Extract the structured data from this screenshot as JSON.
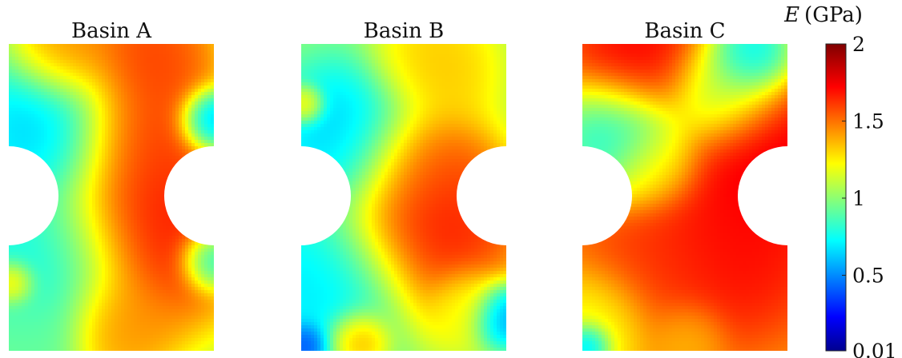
{
  "chart_data": {
    "type": "heatmap",
    "colormap": "jet",
    "colorbar": {
      "label_symbol": "E",
      "label_unit": "(GPa)",
      "min": 0.01,
      "max": 2,
      "ticks": [
        {
          "value": 2,
          "label": "2"
        },
        {
          "value": 1.5,
          "label": "1.5"
        },
        {
          "value": 1,
          "label": "1"
        },
        {
          "value": 0.5,
          "label": "0.5"
        },
        {
          "value": 0.01,
          "label": "0.01"
        }
      ]
    },
    "panels": [
      {
        "title": "Basin A",
        "background": 1.05,
        "blobs": [
          {
            "u": 0.22,
            "v": 0.28,
            "val": 0.6,
            "r": 0.2
          },
          {
            "u": 0.2,
            "v": 0.7,
            "val": 0.72,
            "r": 0.22
          },
          {
            "u": 0.7,
            "v": 0.6,
            "val": 1.8,
            "r": 0.26
          },
          {
            "u": 0.62,
            "v": 0.3,
            "val": 1.7,
            "r": 0.18
          },
          {
            "u": 0.68,
            "v": 0.05,
            "val": 1.7,
            "r": 0.18
          },
          {
            "u": 0.3,
            "v": 0.03,
            "val": 1.55,
            "r": 0.14
          },
          {
            "u": 0.98,
            "v": 0.25,
            "val": 0.45,
            "r": 0.08
          },
          {
            "u": 0.99,
            "v": 0.7,
            "val": 0.55,
            "r": 0.08
          },
          {
            "u": 0.02,
            "v": 0.78,
            "val": 1.55,
            "r": 0.06
          },
          {
            "u": 0.55,
            "v": 0.92,
            "val": 1.5,
            "r": 0.14
          },
          {
            "u": 0.1,
            "v": 0.95,
            "val": 0.95,
            "r": 0.14
          }
        ]
      },
      {
        "title": "Basin B",
        "background": 1.05,
        "blobs": [
          {
            "u": 0.25,
            "v": 0.32,
            "val": 0.6,
            "r": 0.2
          },
          {
            "u": 0.15,
            "v": 0.78,
            "val": 0.65,
            "r": 0.22
          },
          {
            "u": 0.62,
            "v": 0.6,
            "val": 1.8,
            "r": 0.24
          },
          {
            "u": 0.58,
            "v": 0.4,
            "val": 1.65,
            "r": 0.16
          },
          {
            "u": 0.65,
            "v": 0.08,
            "val": 1.4,
            "r": 0.16
          },
          {
            "u": 0.02,
            "v": 0.2,
            "val": 1.4,
            "r": 0.05
          },
          {
            "u": 0.98,
            "v": 0.88,
            "val": 0.45,
            "r": 0.08
          },
          {
            "u": 0.28,
            "v": 0.96,
            "val": 1.6,
            "r": 0.08
          },
          {
            "u": 0.02,
            "v": 0.98,
            "val": 0.3,
            "r": 0.06
          },
          {
            "u": 0.8,
            "v": 0.85,
            "val": 1.2,
            "r": 0.1
          }
        ]
      },
      {
        "title": "Basin C",
        "background": 1.45,
        "blobs": [
          {
            "u": 0.18,
            "v": 0.3,
            "val": 0.7,
            "r": 0.16
          },
          {
            "u": 0.7,
            "v": 0.15,
            "val": 0.95,
            "r": 0.16
          },
          {
            "u": 0.82,
            "v": 0.04,
            "val": 0.6,
            "r": 0.1
          },
          {
            "u": 0.3,
            "v": 0.05,
            "val": 1.8,
            "r": 0.18
          },
          {
            "u": 0.9,
            "v": 0.35,
            "val": 1.85,
            "r": 0.2
          },
          {
            "u": 0.7,
            "v": 0.65,
            "val": 1.78,
            "r": 0.24
          },
          {
            "u": 0.35,
            "v": 0.75,
            "val": 1.65,
            "r": 0.2
          },
          {
            "u": 0.1,
            "v": 0.9,
            "val": 1.15,
            "r": 0.14
          },
          {
            "u": 0.03,
            "v": 0.98,
            "val": 0.4,
            "r": 0.06
          },
          {
            "u": 0.5,
            "v": 0.95,
            "val": 1.35,
            "r": 0.1
          },
          {
            "u": 0.35,
            "v": 0.4,
            "val": 1.3,
            "r": 0.12
          }
        ]
      }
    ]
  }
}
